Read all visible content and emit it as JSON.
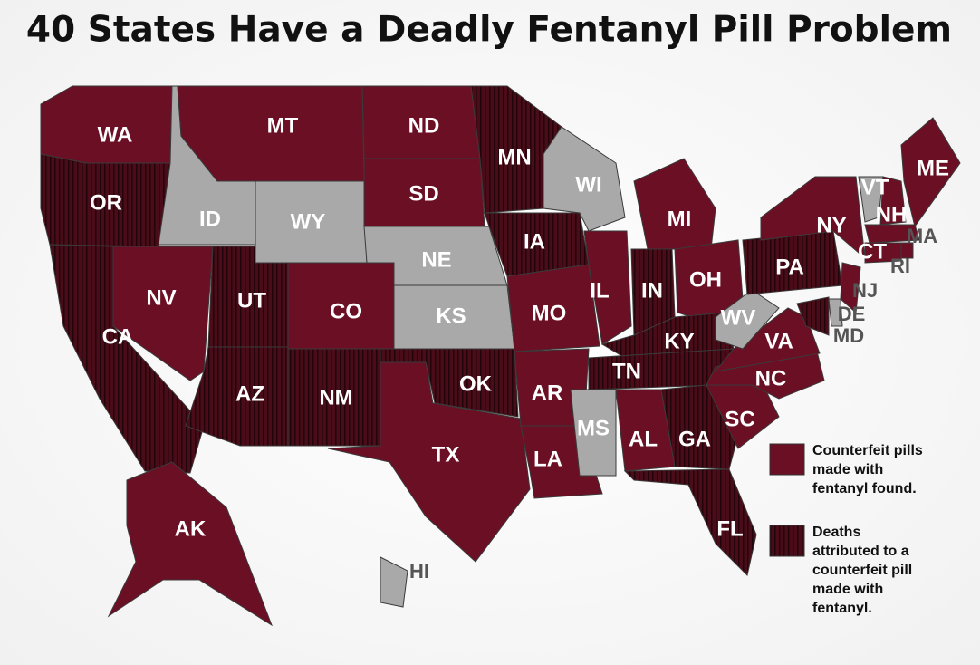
{
  "title": "40 States Have a Deadly Fentanyl Pill Problem",
  "legend": [
    {
      "lines": [
        "Counterfeit pills",
        "made with",
        "fentanyl found."
      ],
      "color": "#6b0f24",
      "striped": false
    },
    {
      "lines": [
        "Deaths",
        "attributed to a",
        "counterfeit pill",
        "made with",
        "fentanyl."
      ],
      "color": "#4a0c18",
      "striped": true
    }
  ],
  "other_color": "#a9a9a9",
  "states": [
    {
      "abbr": "WA",
      "legend": 0
    },
    {
      "abbr": "OR",
      "legend": 1
    },
    {
      "abbr": "CA",
      "legend": 1
    },
    {
      "abbr": "NV",
      "legend": 0
    },
    {
      "abbr": "ID",
      "legend": null
    },
    {
      "abbr": "MT",
      "legend": 0
    },
    {
      "abbr": "WY",
      "legend": null
    },
    {
      "abbr": "UT",
      "legend": 1
    },
    {
      "abbr": "CO",
      "legend": 0
    },
    {
      "abbr": "AZ",
      "legend": 1
    },
    {
      "abbr": "NM",
      "legend": 1
    },
    {
      "abbr": "ND",
      "legend": 0
    },
    {
      "abbr": "SD",
      "legend": 0
    },
    {
      "abbr": "NE",
      "legend": null
    },
    {
      "abbr": "KS",
      "legend": null
    },
    {
      "abbr": "OK",
      "legend": 1
    },
    {
      "abbr": "TX",
      "legend": 0
    },
    {
      "abbr": "MN",
      "legend": 1
    },
    {
      "abbr": "IA",
      "legend": 1
    },
    {
      "abbr": "MO",
      "legend": 0
    },
    {
      "abbr": "AR",
      "legend": 0
    },
    {
      "abbr": "LA",
      "legend": 0
    },
    {
      "abbr": "WI",
      "legend": null
    },
    {
      "abbr": "IL",
      "legend": 0
    },
    {
      "abbr": "MI",
      "legend": 0
    },
    {
      "abbr": "IN",
      "legend": 1
    },
    {
      "abbr": "OH",
      "legend": 0
    },
    {
      "abbr": "KY",
      "legend": 1
    },
    {
      "abbr": "TN",
      "legend": 1
    },
    {
      "abbr": "MS",
      "legend": null
    },
    {
      "abbr": "AL",
      "legend": 0
    },
    {
      "abbr": "GA",
      "legend": 1
    },
    {
      "abbr": "FL",
      "legend": 1
    },
    {
      "abbr": "SC",
      "legend": 0
    },
    {
      "abbr": "NC",
      "legend": 0
    },
    {
      "abbr": "VA",
      "legend": 0
    },
    {
      "abbr": "WV",
      "legend": null
    },
    {
      "abbr": "PA",
      "legend": 1
    },
    {
      "abbr": "NY",
      "legend": 0
    },
    {
      "abbr": "VT",
      "legend": null
    },
    {
      "abbr": "NH",
      "legend": 0
    },
    {
      "abbr": "ME",
      "legend": 0
    },
    {
      "abbr": "MA",
      "legend": 0
    },
    {
      "abbr": "RI",
      "legend": 0
    },
    {
      "abbr": "CT",
      "legend": 0
    },
    {
      "abbr": "NJ",
      "legend": 0
    },
    {
      "abbr": "DE",
      "legend": null
    },
    {
      "abbr": "MD",
      "legend": 1
    },
    {
      "abbr": "AK",
      "legend": 0
    },
    {
      "abbr": "HI",
      "legend": null
    }
  ]
}
